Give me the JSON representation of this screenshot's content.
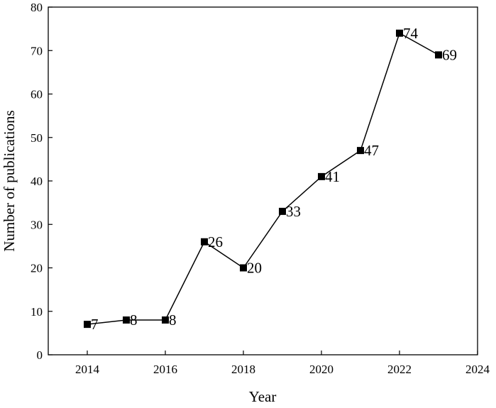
{
  "chart_data": {
    "type": "line",
    "x_label": "Year",
    "y_label": "Number of publications",
    "x": [
      2014,
      2015,
      2016,
      2017,
      2018,
      2019,
      2020,
      2021,
      2022,
      2023
    ],
    "values": [
      7,
      8,
      8,
      26,
      20,
      33,
      41,
      47,
      74,
      69
    ],
    "color": "#000000",
    "xlim": [
      2013,
      2024
    ],
    "xticks": [
      2014,
      2016,
      2018,
      2020,
      2022,
      2024
    ],
    "ylim": [
      0,
      80
    ],
    "yticks": [
      0,
      10,
      20,
      30,
      40,
      50,
      60,
      70,
      80
    ],
    "grid": false
  }
}
